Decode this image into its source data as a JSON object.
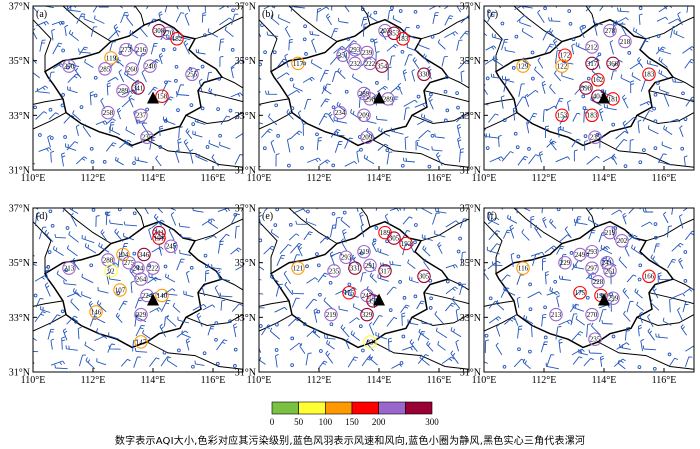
{
  "caption": "数字表示AQI大小,色彩对应其污染级别,蓝色风羽表示风速和风向,蓝色小圈为静风,黑色实心三角代表漯河",
  "axes": {
    "lat_ticks": [
      "37°N",
      "35°N",
      "33°N",
      "31°N"
    ],
    "lon_ticks": [
      "110°E",
      "112°E",
      "114°E",
      "116°E"
    ]
  },
  "colors": {
    "good": "#7ac143",
    "moderate": "#ffff33",
    "light": "#ff9900",
    "medium": "#ff0000",
    "heavy": "#9966cc",
    "severe": "#990033",
    "wind": "#2255bb",
    "boundary": "#000000"
  },
  "colorbar": {
    "ticks": [
      "0",
      "50",
      "100",
      "150",
      "200",
      "300"
    ]
  },
  "luohe": {
    "lon": 114.0,
    "lat": 33.58
  },
  "panels": [
    {
      "label": "(a)",
      "stations": [
        {
          "v": "308",
          "lon": 114.2,
          "lat": 36.1
        },
        {
          "v": "270",
          "lon": 114.5,
          "lat": 36.0
        },
        {
          "v": "182",
          "lon": 114.8,
          "lat": 35.8
        },
        {
          "v": "119",
          "lon": 112.6,
          "lat": 35.1
        },
        {
          "v": "273",
          "lon": 113.1,
          "lat": 35.4
        },
        {
          "v": "216",
          "lon": 113.6,
          "lat": 35.4
        },
        {
          "v": "285",
          "lon": 112.4,
          "lat": 34.7
        },
        {
          "v": "260",
          "lon": 113.3,
          "lat": 34.7
        },
        {
          "v": "240",
          "lon": 113.9,
          "lat": 34.8
        },
        {
          "v": "255",
          "lon": 115.3,
          "lat": 34.5
        },
        {
          "v": "290",
          "lon": 111.2,
          "lat": 34.8
        },
        {
          "v": "289",
          "lon": 113.0,
          "lat": 33.9
        },
        {
          "v": "341",
          "lon": 113.5,
          "lat": 34.0
        },
        {
          "v": "158",
          "lon": 114.3,
          "lat": 33.7
        },
        {
          "v": "258",
          "lon": 112.5,
          "lat": 33.1
        },
        {
          "v": "237",
          "lon": 113.6,
          "lat": 33.0
        },
        {
          "v": "235",
          "lon": 113.8,
          "lat": 32.2
        }
      ]
    },
    {
      "label": "(b)",
      "stations": [
        {
          "v": "203",
          "lon": 114.2,
          "lat": 36.1
        },
        {
          "v": "353",
          "lon": 114.5,
          "lat": 36.0
        },
        {
          "v": "183",
          "lon": 114.8,
          "lat": 35.8
        },
        {
          "v": "117",
          "lon": 111.3,
          "lat": 34.9
        },
        {
          "v": "251",
          "lon": 112.8,
          "lat": 35.2
        },
        {
          "v": "293",
          "lon": 113.2,
          "lat": 35.4
        },
        {
          "v": "239",
          "lon": 113.6,
          "lat": 35.3
        },
        {
          "v": "232",
          "lon": 113.2,
          "lat": 34.9
        },
        {
          "v": "222",
          "lon": 113.7,
          "lat": 34.9
        },
        {
          "v": "354",
          "lon": 114.1,
          "lat": 34.8
        },
        {
          "v": "330",
          "lon": 115.5,
          "lat": 34.5
        },
        {
          "v": "289",
          "lon": 113.5,
          "lat": 33.8
        },
        {
          "v": "298",
          "lon": 113.7,
          "lat": 33.6
        },
        {
          "v": "289",
          "lon": 114.3,
          "lat": 33.6
        },
        {
          "v": "234",
          "lon": 112.7,
          "lat": 33.1
        },
        {
          "v": "209",
          "lon": 113.5,
          "lat": 33.0
        },
        {
          "v": "209",
          "lon": 113.6,
          "lat": 32.2
        }
      ]
    },
    {
      "label": "(c)",
      "stations": [
        {
          "v": "278",
          "lon": 114.2,
          "lat": 36.1
        },
        {
          "v": "212",
          "lon": 113.6,
          "lat": 35.5
        },
        {
          "v": "218",
          "lon": 114.7,
          "lat": 35.7
        },
        {
          "v": "172",
          "lon": 112.7,
          "lat": 35.2
        },
        {
          "v": "122",
          "lon": 112.6,
          "lat": 34.8
        },
        {
          "v": "129",
          "lon": 111.3,
          "lat": 34.8
        },
        {
          "v": "317",
          "lon": 113.6,
          "lat": 34.9
        },
        {
          "v": "366",
          "lon": 114.3,
          "lat": 34.9
        },
        {
          "v": "183",
          "lon": 115.5,
          "lat": 34.5
        },
        {
          "v": "162",
          "lon": 113.8,
          "lat": 34.3
        },
        {
          "v": "398",
          "lon": 113.4,
          "lat": 34.0
        },
        {
          "v": "404",
          "lon": 113.8,
          "lat": 33.7
        },
        {
          "v": "181",
          "lon": 114.3,
          "lat": 33.6
        },
        {
          "v": "153",
          "lon": 112.6,
          "lat": 33.0
        },
        {
          "v": "183",
          "lon": 113.6,
          "lat": 33.0
        },
        {
          "v": "235",
          "lon": 113.7,
          "lat": 32.2
        }
      ]
    },
    {
      "label": "(d)",
      "stations": [
        {
          "v": "311",
          "lon": 114.2,
          "lat": 36.1
        },
        {
          "v": "191",
          "lon": 114.2,
          "lat": 35.9
        },
        {
          "v": "245",
          "lon": 114.6,
          "lat": 35.6
        },
        {
          "v": "213",
          "lon": 111.2,
          "lat": 34.8
        },
        {
          "v": "288",
          "lon": 112.5,
          "lat": 35.1
        },
        {
          "v": "92",
          "lon": 112.6,
          "lat": 34.7
        },
        {
          "v": "104",
          "lon": 113.0,
          "lat": 35.3
        },
        {
          "v": "275",
          "lon": 113.2,
          "lat": 35.0
        },
        {
          "v": "346",
          "lon": 113.7,
          "lat": 35.3
        },
        {
          "v": "244",
          "lon": 113.5,
          "lat": 34.8
        },
        {
          "v": "222",
          "lon": 114.0,
          "lat": 34.8
        },
        {
          "v": "264",
          "lon": 113.6,
          "lat": 34.4
        },
        {
          "v": "107",
          "lon": 112.9,
          "lat": 34.0
        },
        {
          "v": "224",
          "lon": 113.8,
          "lat": 33.8
        },
        {
          "v": "140",
          "lon": 114.3,
          "lat": 33.8
        },
        {
          "v": "146",
          "lon": 112.1,
          "lat": 33.2
        },
        {
          "v": "229",
          "lon": 113.6,
          "lat": 33.1
        },
        {
          "v": "147",
          "lon": 113.6,
          "lat": 32.1
        }
      ]
    },
    {
      "label": "(e)",
      "stations": [
        {
          "v": "189",
          "lon": 114.2,
          "lat": 36.1
        },
        {
          "v": "305",
          "lon": 114.5,
          "lat": 35.9
        },
        {
          "v": "192",
          "lon": 114.9,
          "lat": 35.7
        },
        {
          "v": "121",
          "lon": 111.3,
          "lat": 34.8
        },
        {
          "v": "293",
          "lon": 112.9,
          "lat": 35.2
        },
        {
          "v": "219",
          "lon": 113.5,
          "lat": 35.4
        },
        {
          "v": "235",
          "lon": 112.5,
          "lat": 34.7
        },
        {
          "v": "331",
          "lon": 113.2,
          "lat": 34.8
        },
        {
          "v": "291",
          "lon": 113.7,
          "lat": 34.9
        },
        {
          "v": "317",
          "lon": 114.2,
          "lat": 34.7
        },
        {
          "v": "305",
          "lon": 115.5,
          "lat": 34.5
        },
        {
          "v": "175",
          "lon": 113.0,
          "lat": 33.9
        },
        {
          "v": "247",
          "lon": 113.6,
          "lat": 33.8
        },
        {
          "v": "353",
          "lon": 113.8,
          "lat": 33.6
        },
        {
          "v": "219",
          "lon": 112.4,
          "lat": 33.1
        },
        {
          "v": "329",
          "lon": 113.6,
          "lat": 33.1
        },
        {
          "v": "83",
          "lon": 113.7,
          "lat": 32.1
        }
      ]
    },
    {
      "label": "(f)",
      "stations": [
        {
          "v": "219",
          "lon": 114.2,
          "lat": 36.1
        },
        {
          "v": "202",
          "lon": 114.6,
          "lat": 35.8
        },
        {
          "v": "293",
          "lon": 113.6,
          "lat": 35.4
        },
        {
          "v": "116",
          "lon": 111.3,
          "lat": 34.8
        },
        {
          "v": "229",
          "lon": 112.7,
          "lat": 35.0
        },
        {
          "v": "249",
          "lon": 113.2,
          "lat": 35.3
        },
        {
          "v": "241",
          "lon": 114.1,
          "lat": 35.0
        },
        {
          "v": "297",
          "lon": 113.6,
          "lat": 34.8
        },
        {
          "v": "261",
          "lon": 114.2,
          "lat": 34.7
        },
        {
          "v": "166",
          "lon": 115.5,
          "lat": 34.5
        },
        {
          "v": "228",
          "lon": 113.8,
          "lat": 34.3
        },
        {
          "v": "175",
          "lon": 113.2,
          "lat": 33.9
        },
        {
          "v": "194",
          "lon": 113.9,
          "lat": 33.8
        },
        {
          "v": "299",
          "lon": 114.3,
          "lat": 33.7
        },
        {
          "v": "213",
          "lon": 112.4,
          "lat": 33.1
        },
        {
          "v": "270",
          "lon": 113.6,
          "lat": 33.1
        },
        {
          "v": "235",
          "lon": 113.7,
          "lat": 32.2
        }
      ]
    }
  ]
}
